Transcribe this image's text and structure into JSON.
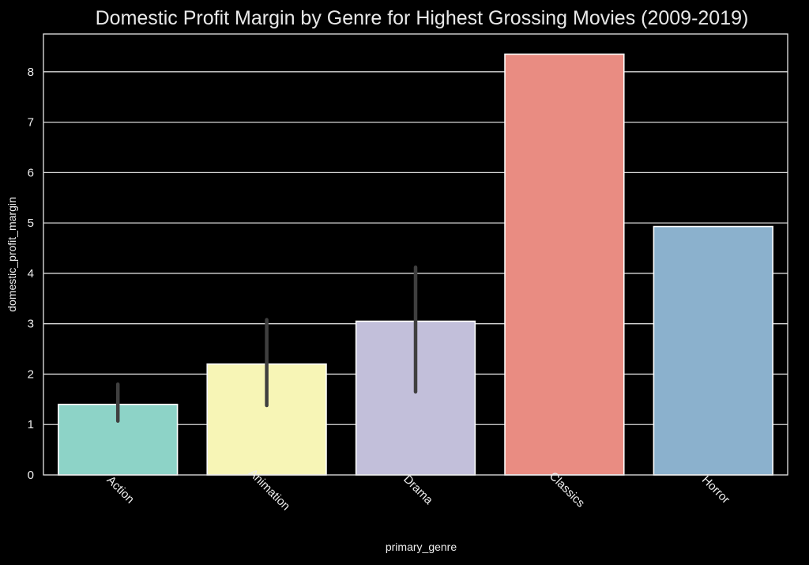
{
  "chart_data": {
    "type": "bar",
    "title": "Domestic Profit Margin by Genre for Highest Grossing Movies (2009-2019)",
    "xlabel": "primary_genre",
    "ylabel": "domestic_profit_margin",
    "categories": [
      "Action",
      "Animation",
      "Drama",
      "Classics",
      "Horror"
    ],
    "values": [
      1.4,
      2.2,
      3.05,
      8.35,
      4.93
    ],
    "error_low": [
      1.07,
      1.38,
      1.65,
      null,
      null
    ],
    "error_high": [
      1.8,
      3.08,
      4.12,
      null,
      null
    ],
    "colors": [
      "#8dd3c7",
      "#f7f5b6",
      "#c2bfda",
      "#e98c82",
      "#8bb1cd"
    ],
    "yticks": [
      0,
      1,
      2,
      3,
      4,
      5,
      6,
      7,
      8
    ],
    "ylim": [
      0,
      8.75
    ],
    "grid": true,
    "legend": "none"
  }
}
